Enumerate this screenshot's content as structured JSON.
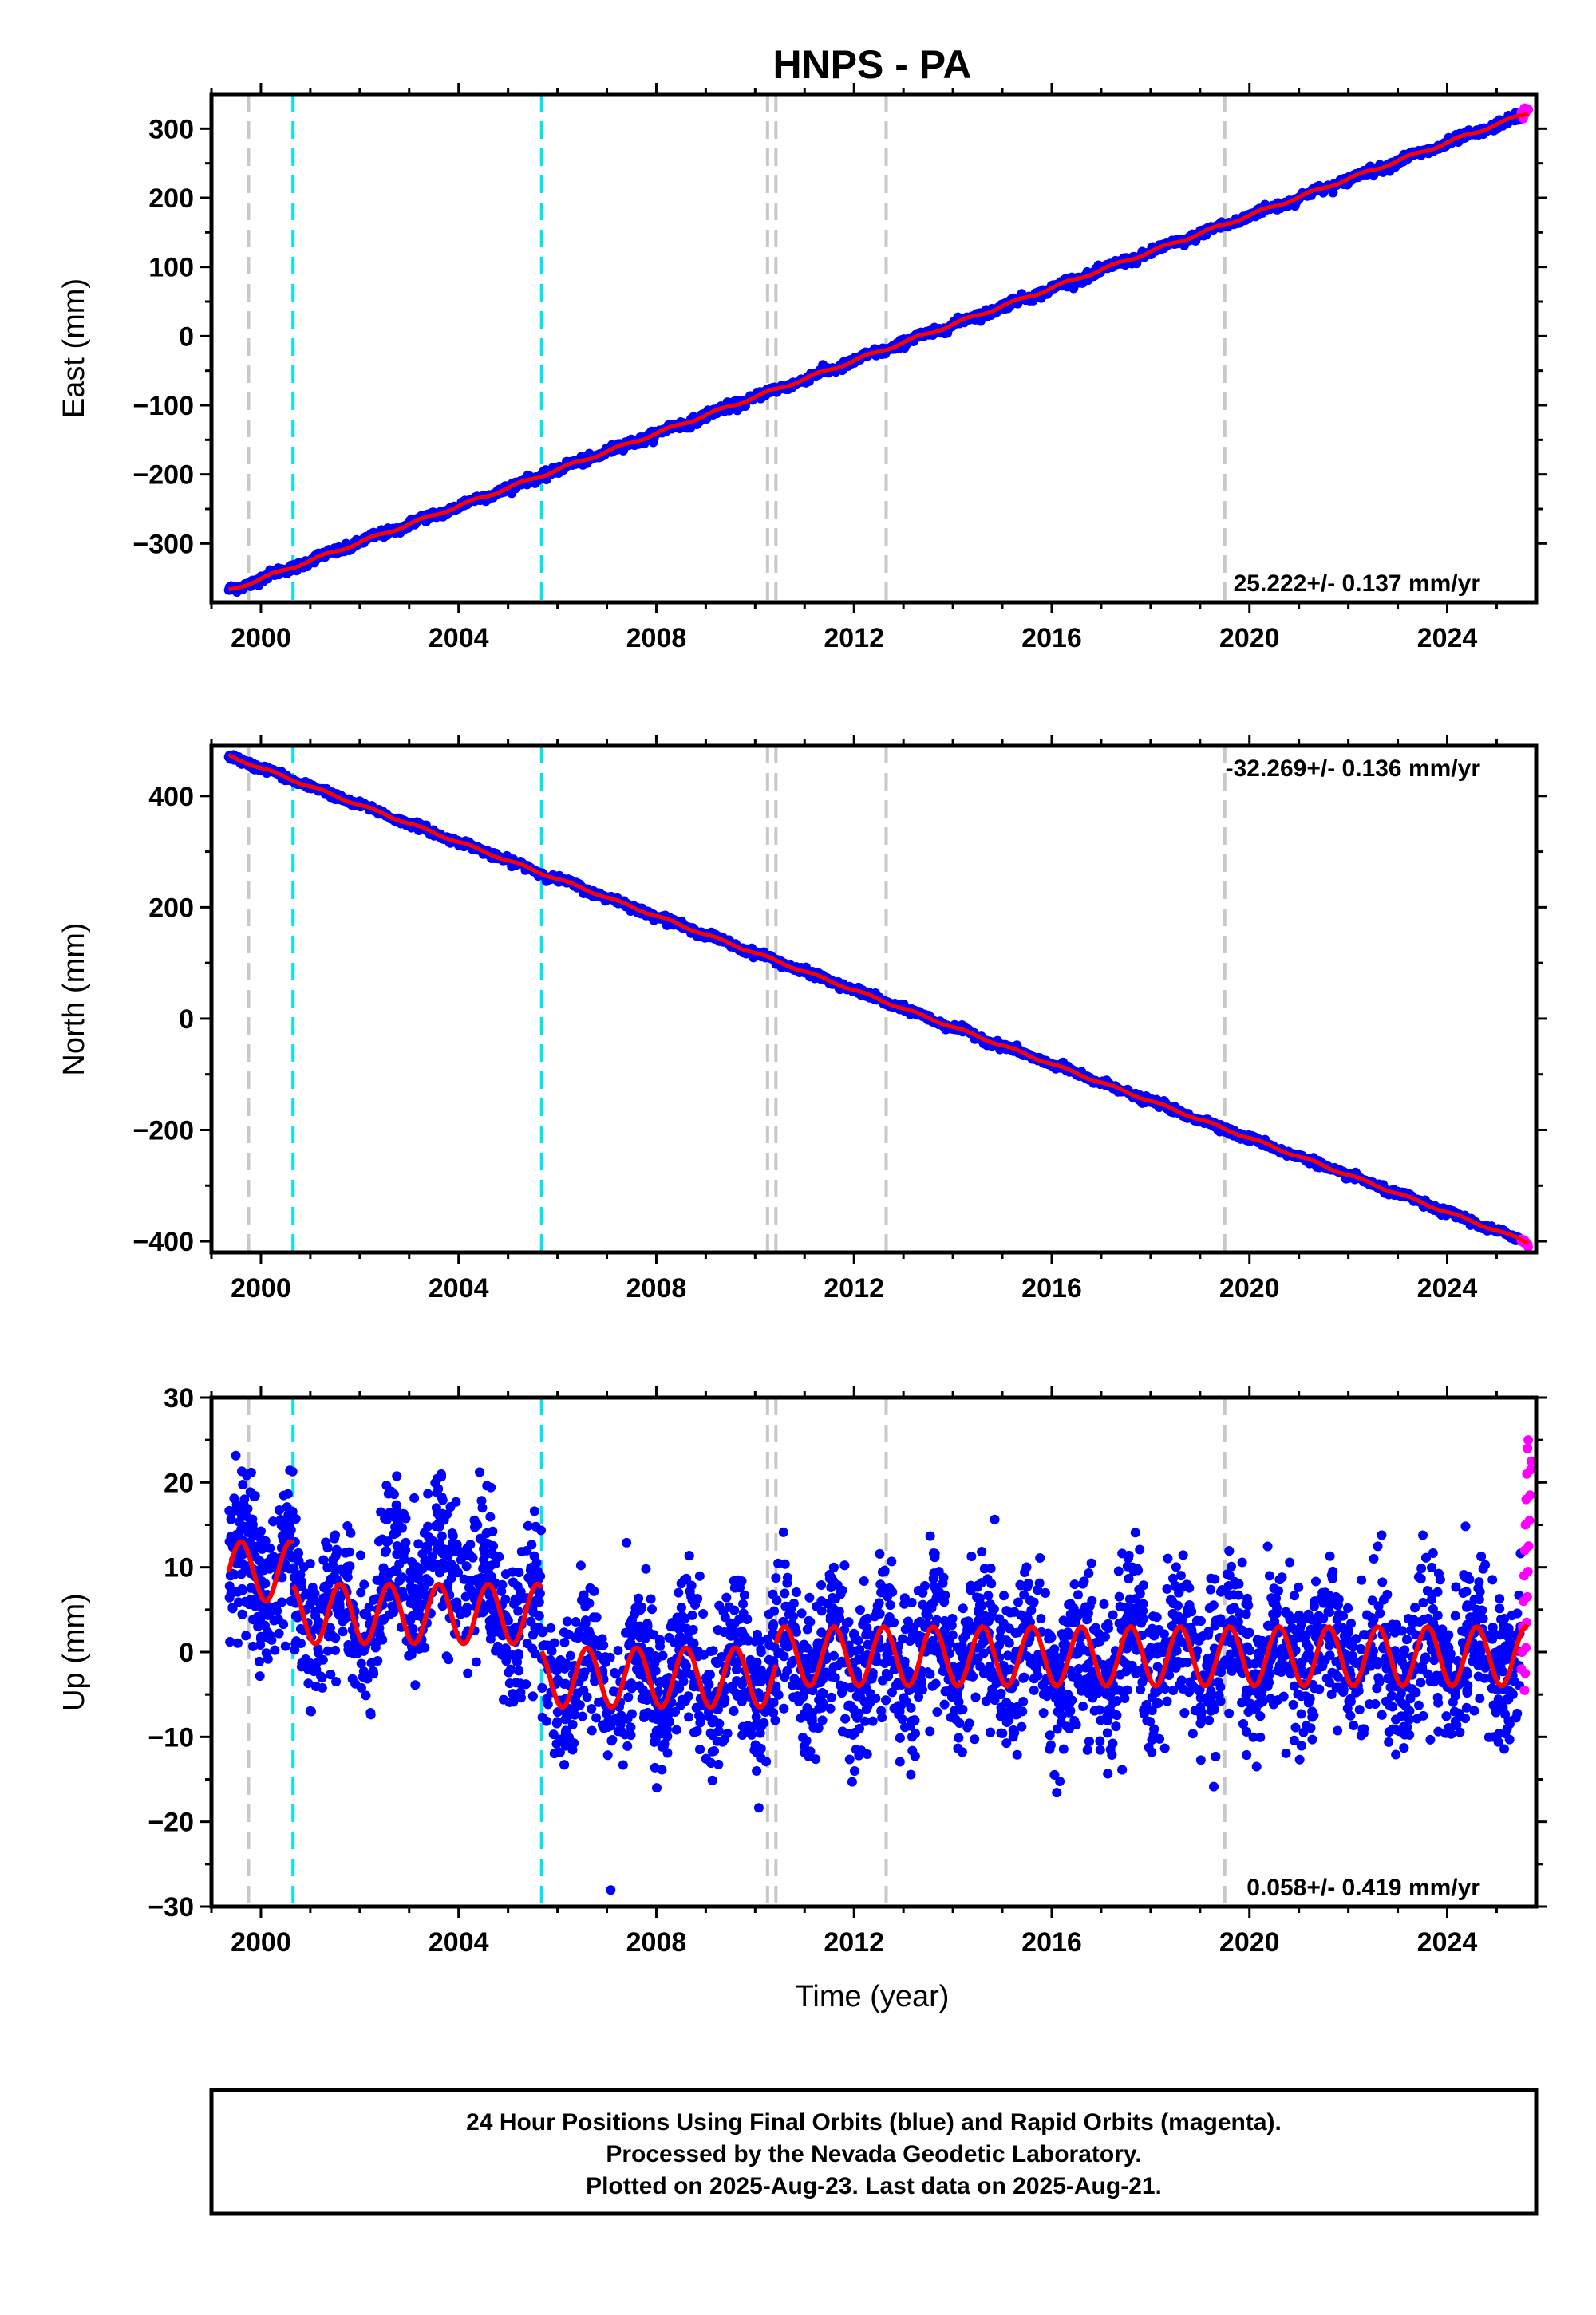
{
  "title": "HNPS - PA",
  "xlabel": "Time (year)",
  "footer": {
    "lines": [
      "24 Hour Positions Using Final Orbits (blue) and Rapid Orbits (magenta).",
      "Processed by the Nevada Geodetic Laboratory.",
      "Plotted on 2025-Aug-23. Last data on 2025-Aug-21."
    ]
  },
  "colors": {
    "final_orbits": "#0000ff",
    "rapid_orbits": "#ff00ff",
    "model": "#ff0000",
    "equipment_change": "#c8c8c8",
    "earthquake": "#00e5ee"
  },
  "chart_data": [
    {
      "type": "scatter",
      "panel": "east",
      "ylabel": "East (mm)",
      "rate_label": "25.222+/- 0.137 mm/yr",
      "rate_position": "bottom-right",
      "xlim": [
        1999.0,
        2025.8
      ],
      "ylim": [
        -385,
        350
      ],
      "xticks": [
        2000,
        2004,
        2008,
        2012,
        2016,
        2020,
        2024
      ],
      "xtick_labels": [
        "2000",
        "2004",
        "2008",
        "2012",
        "2016",
        "2020",
        "2024"
      ],
      "yticks": [
        -300,
        -200,
        -100,
        0,
        100,
        200,
        300
      ],
      "ytick_labels": [
        "−300",
        "−200",
        "−100",
        "0",
        "100",
        "200",
        "300"
      ],
      "equipment_changes": [
        1999.75,
        2010.25,
        2010.42,
        2012.65,
        2019.5
      ],
      "earthquakes": [
        2000.65,
        2005.68
      ],
      "series": [
        {
          "name": "final",
          "start": [
            1999.35,
            -368
          ],
          "end": [
            2025.5,
            318
          ],
          "noise": 3,
          "seasonal": 2
        },
        {
          "name": "rapid",
          "start": [
            2025.5,
            318
          ],
          "end": [
            2025.64,
            328
          ],
          "noise": 4
        },
        {
          "name": "model",
          "start": [
            1999.35,
            -368
          ],
          "end": [
            2025.64,
            323
          ],
          "seasonal": 2
        }
      ]
    },
    {
      "type": "scatter",
      "panel": "north",
      "ylabel": "North (mm)",
      "rate_label": "-32.269+/- 0.136 mm/yr",
      "rate_position": "top-right",
      "xlim": [
        1999.0,
        2025.8
      ],
      "ylim": [
        -420,
        490
      ],
      "xticks": [
        2000,
        2004,
        2008,
        2012,
        2016,
        2020,
        2024
      ],
      "xtick_labels": [
        "2000",
        "2004",
        "2008",
        "2012",
        "2016",
        "2020",
        "2024"
      ],
      "yticks": [
        -400,
        -200,
        0,
        200,
        400
      ],
      "ytick_labels": [
        "−400",
        "−200",
        "0",
        "200",
        "400"
      ],
      "equipment_changes": [
        1999.75,
        2010.25,
        2010.42,
        2012.65,
        2019.5
      ],
      "earthquakes": [
        2000.65,
        2005.68
      ],
      "series": [
        {
          "name": "final",
          "start": [
            1999.35,
            472
          ],
          "end": [
            2025.5,
            -398
          ],
          "noise": 3,
          "seasonal": 2
        },
        {
          "name": "rapid",
          "start": [
            2025.5,
            -398
          ],
          "end": [
            2025.64,
            -404
          ],
          "noise": 3
        },
        {
          "name": "model",
          "start": [
            1999.35,
            472
          ],
          "end": [
            2025.64,
            -402
          ],
          "seasonal": 2
        }
      ]
    },
    {
      "type": "scatter",
      "panel": "up",
      "ylabel": "Up (mm)",
      "rate_label": "0.058+/- 0.419 mm/yr",
      "rate_position": "bottom-right",
      "xlim": [
        1999.0,
        2025.8
      ],
      "ylim": [
        -30,
        30
      ],
      "xticks": [
        2000,
        2004,
        2008,
        2012,
        2016,
        2020,
        2024
      ],
      "xtick_labels": [
        "2000",
        "2004",
        "2008",
        "2012",
        "2016",
        "2020",
        "2024"
      ],
      "yticks": [
        -30,
        -20,
        -10,
        0,
        10,
        20,
        30
      ],
      "ytick_labels": [
        "−30",
        "−20",
        "−10",
        "0",
        "10",
        "20",
        "30"
      ],
      "equipment_changes": [
        1999.75,
        2010.25,
        2010.42,
        2012.65,
        2019.5
      ],
      "earthquakes": [
        2000.65,
        2005.68
      ],
      "offsets": [
        {
          "from": 1999.35,
          "to": 2000.65,
          "mean": 9.5
        },
        {
          "from": 2000.65,
          "to": 2005.68,
          "mean": 4.5
        },
        {
          "from": 2005.68,
          "to": 2010.42,
          "mean": -3.0
        },
        {
          "from": 2010.42,
          "to": 2025.64,
          "mean": -0.5
        }
      ],
      "seasonal_amplitude": 3.5,
      "series": [
        {
          "name": "final",
          "x_range": [
            1999.35,
            2025.5
          ],
          "noise": 4.5
        },
        {
          "name": "rapid",
          "x_range": [
            2025.5,
            2025.64
          ],
          "values": [
            -2,
            0,
            3,
            6,
            9,
            12,
            15,
            18,
            21,
            24,
            25
          ]
        },
        {
          "name": "model"
        }
      ]
    }
  ]
}
